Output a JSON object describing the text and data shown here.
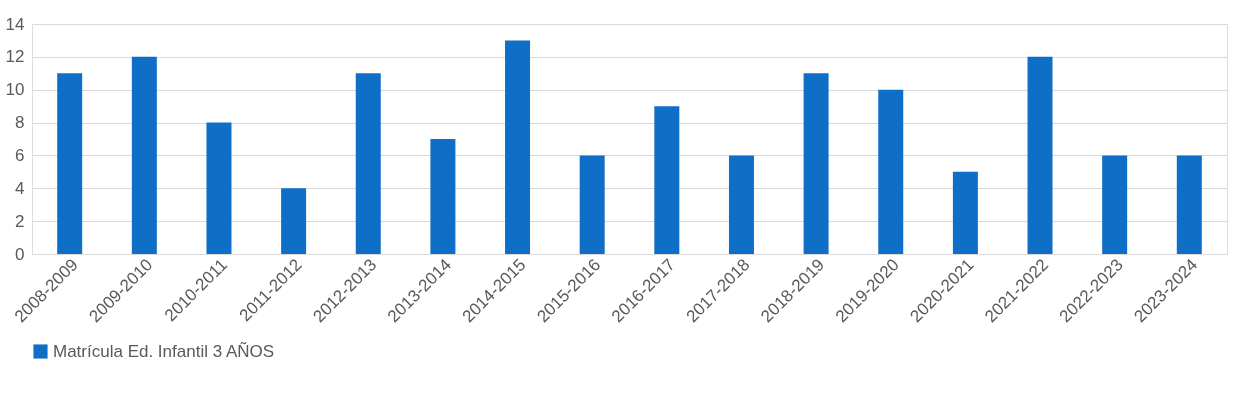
{
  "chart_data": {
    "type": "bar",
    "categories": [
      "2008-2009",
      "2009-2010",
      "2010-2011",
      "2011-2012",
      "2012-2013",
      "2013-2014",
      "2014-2015",
      "2015-2016",
      "2016-2017",
      "2017-2018",
      "2018-2019",
      "2019-2020",
      "2020-2021",
      "2021-2022",
      "2022-2023",
      "2023-2024"
    ],
    "series": [
      {
        "name": "Matrícula Ed. Infantil 3 AÑOS",
        "color": "#0f6fc6",
        "values": [
          11,
          12,
          8,
          4,
          11,
          7,
          13,
          6,
          9,
          6,
          11,
          10,
          5,
          12,
          6,
          6
        ]
      }
    ],
    "ylim": [
      0,
      14
    ],
    "yticks": [
      0,
      2,
      4,
      6,
      8,
      10,
      12,
      14
    ],
    "grid": "y",
    "legend": "bottom"
  }
}
